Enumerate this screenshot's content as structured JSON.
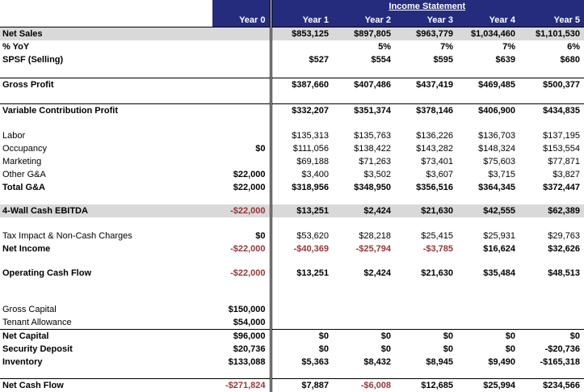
{
  "header": {
    "title": "Income Statement",
    "year0_label": "Year 0",
    "year_labels": [
      "Year 1",
      "Year 2",
      "Year 3",
      "Year 4",
      "Year 5"
    ]
  },
  "colors": {
    "header_bg": "#252C7E",
    "row_highlight": "#D9D9D9",
    "negative_text": "#953735"
  },
  "rows": [
    {
      "label": "Net Sales",
      "bold": true,
      "gray": true,
      "year0": "",
      "values": [
        "$853,125",
        "$897,805",
        "$963,779",
        "$1,034,460",
        "$1,101,530"
      ]
    },
    {
      "label": "% YoY",
      "bold": true,
      "year0": "",
      "values": [
        "",
        "5%",
        "7%",
        "7%",
        "6%"
      ]
    },
    {
      "label": "SPSF (Selling)",
      "bold": true,
      "year0": "",
      "values": [
        "$527",
        "$554",
        "$595",
        "$639",
        "$680"
      ]
    },
    {
      "type": "spacer",
      "h": 14,
      "line_bottom": true
    },
    {
      "label": "Gross Profit",
      "bold": true,
      "year0": "",
      "values": [
        "$387,660",
        "$407,486",
        "$437,419",
        "$469,485",
        "$500,377"
      ]
    },
    {
      "type": "spacer",
      "h": 16,
      "line_bottom": true
    },
    {
      "label": "Variable Contribution Profit",
      "bold": true,
      "year0": "",
      "values": [
        "$332,207",
        "$351,374",
        "$378,146",
        "$406,900",
        "$434,835"
      ]
    },
    {
      "type": "spacer",
      "h": 15
    },
    {
      "label": "Labor",
      "year0": "",
      "values": [
        "$135,313",
        "$135,763",
        "$136,226",
        "$136,703",
        "$137,195"
      ]
    },
    {
      "label": "Occupancy",
      "year0": "$0",
      "values": [
        "$111,056",
        "$138,422",
        "$143,282",
        "$148,324",
        "$153,554"
      ]
    },
    {
      "label": "Marketing",
      "year0": "",
      "values": [
        "$69,188",
        "$71,263",
        "$73,401",
        "$75,603",
        "$77,871"
      ]
    },
    {
      "label": "Other G&A",
      "year0": "$22,000",
      "values": [
        "$3,400",
        "$3,502",
        "$3,607",
        "$3,715",
        "$3,827"
      ]
    },
    {
      "label": "Total G&A",
      "bold": true,
      "year0": "$22,000",
      "values": [
        "$318,956",
        "$348,950",
        "$356,516",
        "$364,345",
        "$372,447"
      ]
    },
    {
      "type": "spacer",
      "h": 13
    },
    {
      "label": "4-Wall Cash EBITDA",
      "bold": true,
      "gray": true,
      "year0": "-$22,000",
      "red0": true,
      "values": [
        "$13,251",
        "$2,424",
        "$21,630",
        "$42,555",
        "$62,389"
      ]
    },
    {
      "type": "spacer",
      "h": 15
    },
    {
      "label": "Tax Impact & Non-Cash Charges",
      "year0": "$0",
      "values": [
        "$53,620",
        "$28,218",
        "$25,415",
        "$25,931",
        "$29,763"
      ]
    },
    {
      "label": "Net Income",
      "bold": true,
      "year0": "-$22,000",
      "red0": true,
      "values": [
        "-$40,369",
        "-$25,794",
        "-$3,785",
        "$16,624",
        "$32,626"
      ],
      "red": [
        0,
        1,
        2
      ]
    },
    {
      "type": "spacer",
      "h": 14
    },
    {
      "label": "Operating Cash Flow",
      "bold": true,
      "year0": "-$22,000",
      "red0": true,
      "values": [
        "$13,251",
        "$2,424",
        "$21,630",
        "$35,484",
        "$48,513"
      ]
    },
    {
      "type": "spacer",
      "h": 29
    },
    {
      "label": "Gross Capital",
      "year0": "$150,000",
      "values": [
        "",
        "",
        "",
        "",
        ""
      ]
    },
    {
      "label": "Tenant Allowance",
      "year0": "$54,000",
      "values": [
        "",
        "",
        "",
        "",
        ""
      ],
      "line_bottom": true
    },
    {
      "label": "Net Capital",
      "bold": true,
      "year0": "$96,000",
      "values": [
        "$0",
        "$0",
        "$0",
        "$0",
        "$0"
      ]
    },
    {
      "label": "Security Deposit",
      "bold": true,
      "year0": "$20,736",
      "values": [
        "$0",
        "$0",
        "$0",
        "$0",
        "-$20,736"
      ]
    },
    {
      "label": "Inventory",
      "bold": true,
      "year0": "$133,088",
      "values": [
        "$5,363",
        "$8,432",
        "$8,945",
        "$9,490",
        "-$165,318"
      ]
    },
    {
      "type": "spacer",
      "h": 12
    },
    {
      "label": "Net Cash Flow",
      "bold": true,
      "year0": "-$271,824",
      "red0": true,
      "values": [
        "$7,887",
        "-$6,008",
        "$12,685",
        "$25,994",
        "$234,566"
      ],
      "red": [
        1
      ],
      "line_top": true,
      "line_bottom": true
    }
  ]
}
